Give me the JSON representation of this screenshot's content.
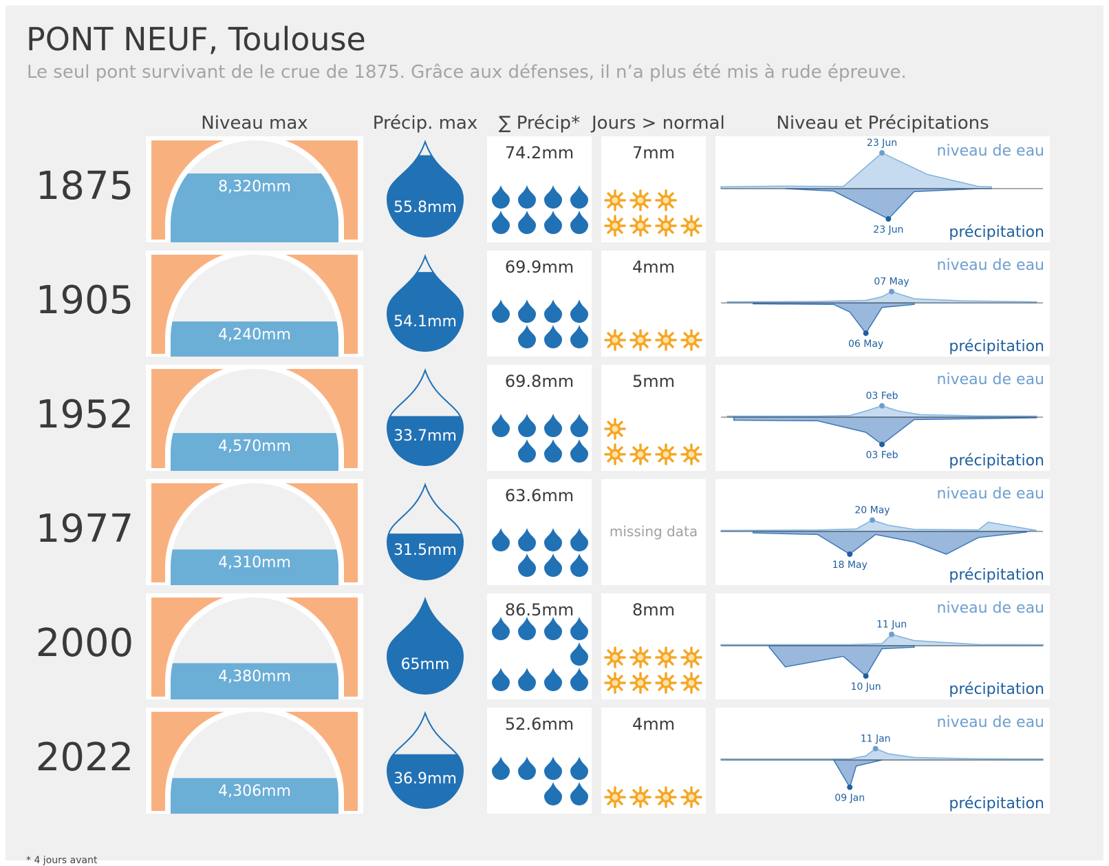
{
  "title": "PONT NEUF, Toulouse",
  "subtitle": "Le seul pont survivant de le crue de 1875. Grâce aux défenses, il n’a plus été mis à rude épreuve.",
  "columns": {
    "niveau_max": "Niveau max",
    "precip_max": "Précip. max",
    "precip_sum": "∑ Précip*",
    "jours": "Jours > normal",
    "chart": "Niveau et Précipitations"
  },
  "labels": {
    "niveau_de_eau": "niveau de eau",
    "precipitation": "précipitation",
    "missing": "missing data"
  },
  "footnote": "* 4 jours avant",
  "colors": {
    "arch_bg": "#f9b07f",
    "water": "#6baed6",
    "drop": "#2171b5",
    "sun": "#f5a623",
    "level_text": "#6d9ed0",
    "precip_text": "#1f5f9f",
    "level_area": "#c6dbef",
    "precip_area": "#9ab8dc"
  },
  "chart_data": {
    "type": "table",
    "years": [
      {
        "year": "1875",
        "niveau_max": "8,320mm",
        "niveau_value": 8320,
        "precip_max": "55.8mm",
        "precip_max_value": 55.8,
        "precip_sum": "74.2mm",
        "drops": 8,
        "jours": "7mm",
        "jours_count": 7,
        "level_peak_label": "23 Jun",
        "precip_peak_label": "23 Jun"
      },
      {
        "year": "1905",
        "niveau_max": "4,240mm",
        "niveau_value": 4240,
        "precip_max": "54.1mm",
        "precip_max_value": 54.1,
        "precip_sum": "69.9mm",
        "drops": 7,
        "jours": "4mm",
        "jours_count": 4,
        "level_peak_label": "07 May",
        "precip_peak_label": "06 May"
      },
      {
        "year": "1952",
        "niveau_max": "4,570mm",
        "niveau_value": 4570,
        "precip_max": "33.7mm",
        "precip_max_value": 33.7,
        "precip_sum": "69.8mm",
        "drops": 7,
        "jours": "5mm",
        "jours_count": 5,
        "level_peak_label": "03 Feb",
        "precip_peak_label": "03 Feb"
      },
      {
        "year": "1977",
        "niveau_max": "4,310mm",
        "niveau_value": 4310,
        "precip_max": "31.5mm",
        "precip_max_value": 31.5,
        "precip_sum": "63.6mm",
        "drops": 7,
        "jours": null,
        "jours_count": 0,
        "level_peak_label": "20 May",
        "precip_peak_label": "18 May"
      },
      {
        "year": "2000",
        "niveau_max": "4,380mm",
        "niveau_value": 4380,
        "precip_max": "65mm",
        "precip_max_value": 65,
        "precip_sum": "86.5mm",
        "drops": 9,
        "jours": "8mm",
        "jours_count": 8,
        "level_peak_label": "11 Jun",
        "precip_peak_label": "10 Jun"
      },
      {
        "year": "2022",
        "niveau_max": "4,306mm",
        "niveau_value": 4306,
        "precip_max": "36.9mm",
        "precip_max_value": 36.9,
        "precip_sum": "52.6mm",
        "drops": 6,
        "jours": "4mm",
        "jours_count": 4,
        "level_peak_label": "11 Jan",
        "precip_peak_label": "09 Jan"
      }
    ]
  }
}
